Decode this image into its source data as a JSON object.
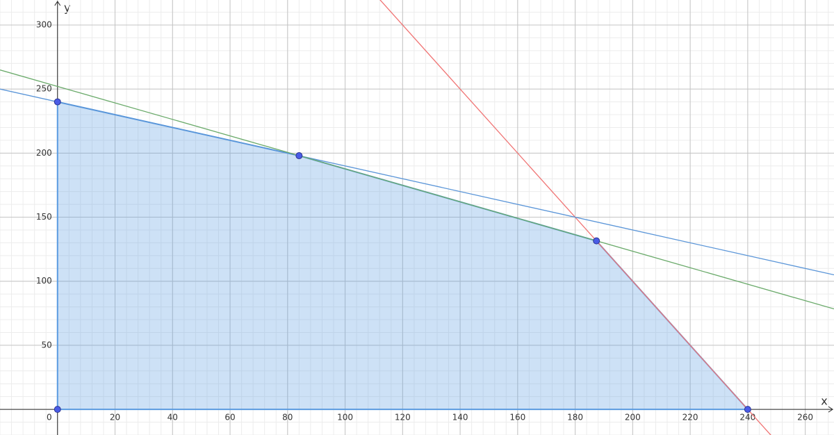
{
  "chart_data": {
    "type": "line",
    "x_label": "x",
    "y_label": "y",
    "xlim": [
      -20,
      270
    ],
    "ylim": [
      -20,
      319.5
    ],
    "xticks": [
      0,
      20,
      40,
      60,
      80,
      100,
      120,
      140,
      160,
      180,
      200,
      220,
      240,
      260
    ],
    "yticks": [
      50,
      100,
      150,
      200,
      250,
      300
    ],
    "grid": true,
    "minor_divisions": 5,
    "series": [
      {
        "color": "#f07373",
        "x": [
          110,
          250
        ],
        "values": [
          325,
          -25
        ]
      },
      {
        "color": "#5a95d8",
        "x": [
          -20,
          270
        ],
        "values": [
          250,
          105
        ]
      },
      {
        "color": "#6aaa6a",
        "x": [
          -20,
          270
        ],
        "values": [
          264.9,
          78.4
        ]
      }
    ],
    "region": {
      "color": "#5a9be0",
      "x": [
        0,
        0,
        84,
        187.4,
        240
      ],
      "values": [
        0,
        240,
        198,
        131.5,
        0
      ]
    },
    "point_color": "#4a5ce6"
  }
}
